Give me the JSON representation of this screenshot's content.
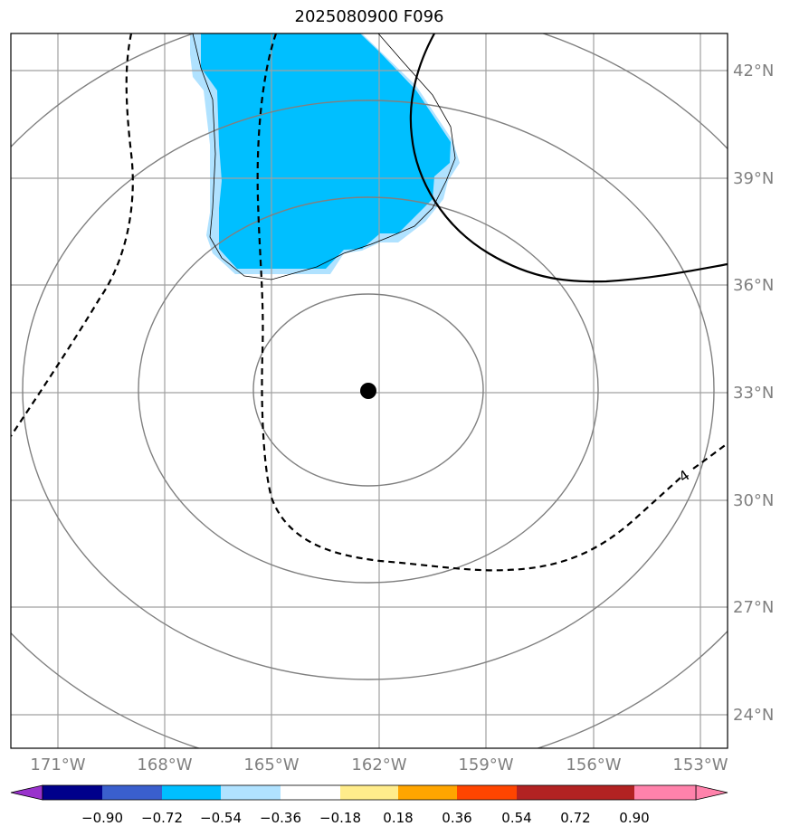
{
  "title": "2025080900 F096",
  "lon_labels": [
    "171°W",
    "168°W",
    "165°W",
    "162°W",
    "159°W",
    "156°W",
    "153°W"
  ],
  "lat_labels": [
    "42°N",
    "39°N",
    "36°N",
    "33°N",
    "30°N",
    "27°N",
    "24°N"
  ],
  "contour_label": "4",
  "colorbar": {
    "ticks": [
      "−0.90",
      "−0.72",
      "−0.54",
      "−0.36",
      "−0.18",
      "0.18",
      "0.36",
      "0.54",
      "0.72",
      "0.90"
    ],
    "colors": [
      "#9932cc",
      "#00008b",
      "#3a5fcd",
      "#00bfff",
      "#b0e2ff",
      "#ffffff",
      "#ffec8b",
      "#ffa500",
      "#ff4500",
      "#b22222",
      "#ff82ab"
    ]
  },
  "colors": {
    "shade_strong": "#00bfff",
    "shade_light": "#b0e2ff",
    "grid": "#a0a0a0",
    "range_rings": "#808080",
    "label_gray": "#808080"
  },
  "storm_center": {
    "lon": "-162.3",
    "lat": "33.0"
  }
}
